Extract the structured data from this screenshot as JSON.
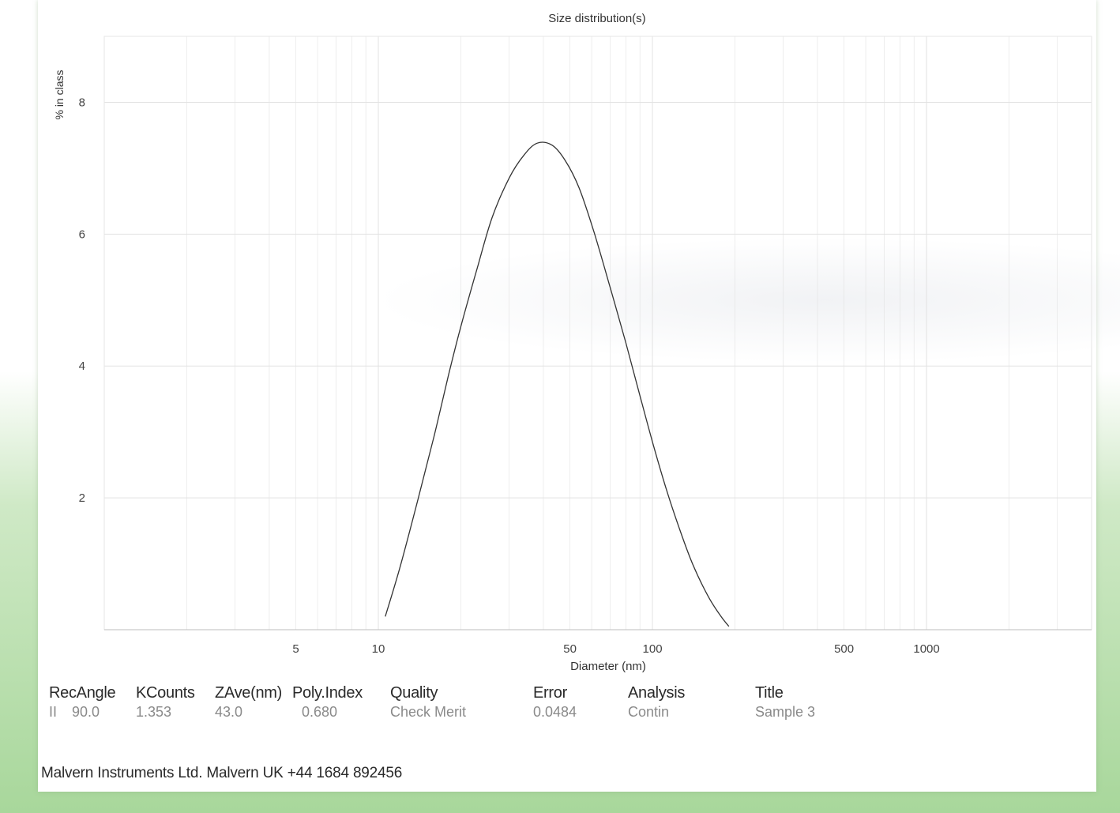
{
  "chart_data": {
    "type": "line",
    "title": "Size distribution(s)",
    "xlabel": "Diameter (nm)",
    "ylabel": "% in class",
    "x_scale": "log",
    "xlim": [
      1,
      4000
    ],
    "ylim": [
      0,
      9
    ],
    "x_ticks": [
      5,
      10,
      50,
      100,
      500,
      1000
    ],
    "x_tick_labels": [
      "5",
      "10",
      "50",
      "100",
      "500",
      "1000"
    ],
    "y_ticks": [
      2,
      4,
      6,
      8
    ],
    "y_tick_labels": [
      "2",
      "4",
      "6",
      "8"
    ],
    "grid": true,
    "series": [
      {
        "x": [
          10.6,
          12,
          14,
          16,
          18,
          20,
          23,
          26,
          30,
          34,
          38,
          43,
          48,
          54,
          61,
          70,
          80,
          90,
          100,
          112,
          125,
          140,
          160,
          178,
          190
        ],
        "y": [
          0.2,
          0.95,
          2.0,
          2.95,
          3.85,
          4.6,
          5.5,
          6.25,
          6.85,
          7.2,
          7.38,
          7.35,
          7.12,
          6.7,
          6.05,
          5.2,
          4.35,
          3.55,
          2.85,
          2.15,
          1.55,
          1.0,
          0.5,
          0.2,
          0.05
        ]
      }
    ]
  },
  "stats": {
    "headers": {
      "rec_angle": "RecAngle",
      "kcounts": "KCounts",
      "zave": "ZAve(nm)",
      "poly_index": "Poly.Index",
      "quality": "Quality",
      "error": "Error",
      "analysis": "Analysis",
      "title": "Title"
    },
    "values": {
      "rec_marker": "II",
      "rec_angle": "90.0",
      "kcounts": "1.353",
      "zave": "43.0",
      "poly_index": "0.680",
      "quality": "Check Merit",
      "error": "0.0484",
      "analysis": "Contin",
      "title": "Sample 3"
    }
  },
  "footer": "Malvern Instruments Ltd. Malvern UK +44 1684 892456",
  "colors": {
    "frame_green": "#a8d79b",
    "grid": "#e2e2e2",
    "curve": "#333333"
  }
}
